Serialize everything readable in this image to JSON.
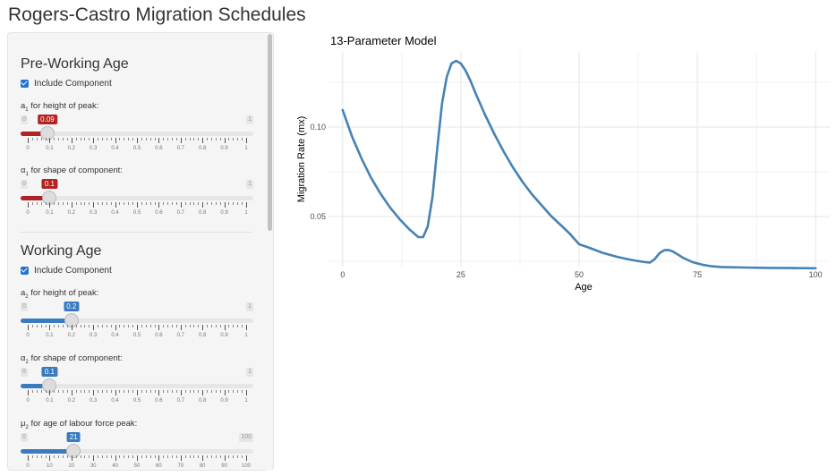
{
  "app": {
    "title": "Rogers-Castro Migration Schedules"
  },
  "sidebar": {
    "sections": [
      {
        "title": "Pre-Working Age",
        "checkbox_label": "Include Component",
        "checked": true,
        "color": "#b22222",
        "sliders": [
          {
            "label_main": "a",
            "label_sub": "1",
            "label_rest": " for height of peak:",
            "min": "0",
            "max": "1",
            "value": "0.09",
            "fraction": 0.09,
            "ticks": [
              "0",
              "0.1",
              "0.2",
              "0.3",
              "0.4",
              "0.5",
              "0.6",
              "0.7",
              "0.8",
              "0.9",
              "1"
            ]
          },
          {
            "label_main": "α",
            "label_sub": "1",
            "label_rest": " for shape of component:",
            "min": "0",
            "max": "1",
            "value": "0.1",
            "fraction": 0.1,
            "ticks": [
              "0",
              "0.1",
              "0.2",
              "0.3",
              "0.4",
              "0.5",
              "0.6",
              "0.7",
              "0.8",
              "0.9",
              "1"
            ]
          }
        ]
      },
      {
        "title": "Working Age",
        "checkbox_label": "Include Component",
        "checked": true,
        "color": "#3a7bbf",
        "sliders": [
          {
            "label_main": "a",
            "label_sub": "2",
            "label_rest": " for height of peak:",
            "min": "0",
            "max": "1",
            "value": "0.2",
            "fraction": 0.2,
            "ticks": [
              "0",
              "0.1",
              "0.2",
              "0.3",
              "0.4",
              "0.5",
              "0.6",
              "0.7",
              "0.8",
              "0.9",
              "1"
            ]
          },
          {
            "label_main": "α",
            "label_sub": "2",
            "label_rest": " for shape of component:",
            "min": "0",
            "max": "1",
            "value": "0.1",
            "fraction": 0.1,
            "ticks": [
              "0",
              "0.1",
              "0.2",
              "0.3",
              "0.4",
              "0.5",
              "0.6",
              "0.7",
              "0.8",
              "0.9",
              "1"
            ]
          },
          {
            "label_main": "μ",
            "label_sub": "2",
            "label_rest": " for age of labour force peak:",
            "min": "0",
            "max": "100",
            "value": "21",
            "fraction": 0.21,
            "ticks": [
              "0",
              "10",
              "20",
              "30",
              "40",
              "50",
              "60",
              "70",
              "80",
              "90",
              "100"
            ]
          }
        ]
      }
    ]
  },
  "chart_data": {
    "type": "line",
    "title": "13-Parameter Model",
    "xlabel": "Age",
    "ylabel": "Migration Rate (mx)",
    "xlim": [
      -3,
      103
    ],
    "ylim": [
      0.022,
      0.142
    ],
    "xticks": [
      0,
      25,
      50,
      75,
      100
    ],
    "yticks": [
      0.05,
      0.1
    ],
    "ytick_labels": [
      "0.05",
      "0.10"
    ],
    "grid": true,
    "line_color": "#4682b4",
    "x": [
      0,
      2,
      4,
      6,
      8,
      10,
      12,
      14,
      16,
      17,
      18,
      19,
      20,
      21,
      22,
      23,
      24,
      25,
      26,
      27,
      28,
      30,
      32,
      34,
      36,
      38,
      40,
      42,
      44,
      46,
      48,
      50,
      52,
      55,
      58,
      60,
      62,
      64,
      65,
      66,
      67,
      68,
      69,
      70,
      72,
      74,
      76,
      78,
      80,
      85,
      90,
      95,
      100
    ],
    "y": [
      0.1095,
      0.0946,
      0.0823,
      0.0717,
      0.0628,
      0.0551,
      0.0487,
      0.0431,
      0.0385,
      0.0385,
      0.0445,
      0.061,
      0.088,
      0.113,
      0.128,
      0.1355,
      0.137,
      0.1355,
      0.1315,
      0.126,
      0.1195,
      0.1075,
      0.0965,
      0.0865,
      0.0775,
      0.0695,
      0.0625,
      0.0565,
      0.0505,
      0.0455,
      0.0405,
      0.0345,
      0.0327,
      0.0297,
      0.0275,
      0.0263,
      0.0253,
      0.0245,
      0.0243,
      0.0262,
      0.0295,
      0.0312,
      0.0313,
      0.0302,
      0.0269,
      0.0245,
      0.0231,
      0.0222,
      0.0218,
      0.0215,
      0.0213,
      0.0212,
      0.0211
    ]
  }
}
